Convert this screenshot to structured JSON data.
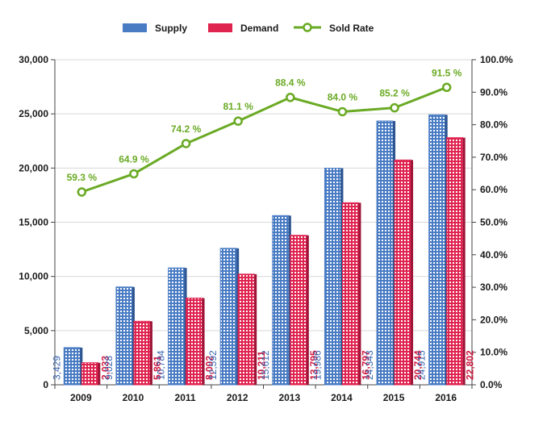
{
  "chart_data": {
    "type": "bar",
    "categories": [
      "2009",
      "2010",
      "2011",
      "2012",
      "2013",
      "2014",
      "2015",
      "2016"
    ],
    "series": [
      {
        "name": "Supply",
        "type": "bar",
        "axis": "left",
        "values": [
          3429,
          9028,
          10784,
          12592,
          15612,
          19986,
          24343,
          24915
        ],
        "labels": [
          "3,429",
          "9,028",
          "10,784",
          "12,592",
          "15,612",
          "19,986",
          "24,343",
          "24,915"
        ]
      },
      {
        "name": "Demand",
        "type": "bar",
        "axis": "left",
        "values": [
          2033,
          5861,
          8002,
          10211,
          13795,
          16797,
          20744,
          22802
        ],
        "labels": [
          "2,033",
          "5,861",
          "8,002",
          "10,211",
          "13,795",
          "16,797",
          "20,744",
          "22,802"
        ]
      },
      {
        "name": "Sold Rate",
        "type": "line",
        "axis": "right",
        "values": [
          59.3,
          64.9,
          74.2,
          81.1,
          88.4,
          84.0,
          85.2,
          91.5
        ],
        "labels": [
          "59.3 %",
          "64.9 %",
          "74.2 %",
          "81.1 %",
          "88.4 %",
          "84.0 %",
          "85.2 %",
          "91.5 %"
        ]
      }
    ],
    "y_left": {
      "min": 0,
      "max": 30000,
      "ticks": [
        "0",
        "5,000",
        "10,000",
        "15,000",
        "20,000",
        "25,000",
        "30,000"
      ]
    },
    "y_right": {
      "min": 0,
      "max": 100,
      "ticks": [
        "0.0%",
        "10.0%",
        "20.0%",
        "30.0%",
        "40.0%",
        "50.0%",
        "60.0%",
        "70.0%",
        "80.0%",
        "90.0%",
        "100.0%"
      ]
    },
    "legend": {
      "position": "top",
      "items": [
        "Supply",
        "Demand",
        "Sold Rate"
      ]
    },
    "grid": true,
    "colors": {
      "supply": "#4a7cc4",
      "demand": "#e02450",
      "line": "#6aaa24",
      "grid": "#d8d8d8"
    }
  }
}
